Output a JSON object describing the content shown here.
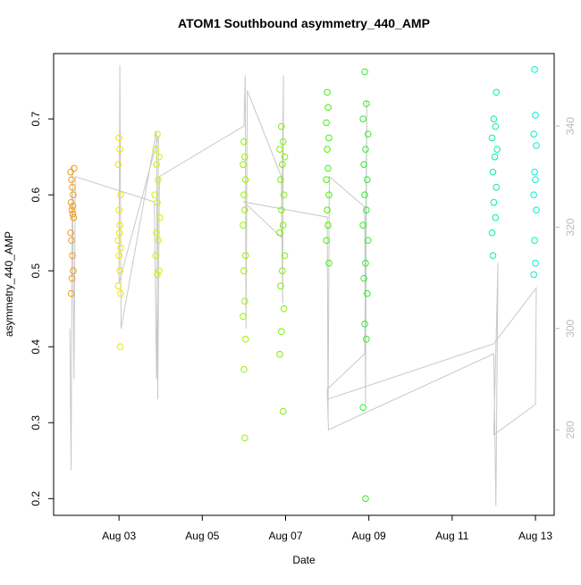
{
  "chart_data": {
    "type": "scatter",
    "title": "ATOM1 Southbound asymmetry_440_AMP",
    "xlabel": "Date",
    "ylabel": "asymmetry_440_AMP",
    "xlim": [
      1.43,
      13.45
    ],
    "ylim": [
      0.178,
      0.786
    ],
    "y2lim": [
      263.1,
      354.3
    ],
    "xticks": [
      {
        "value": 3,
        "label": "Aug 03"
      },
      {
        "value": 5,
        "label": "Aug 05"
      },
      {
        "value": 7,
        "label": "Aug 07"
      },
      {
        "value": 9,
        "label": "Aug 09"
      },
      {
        "value": 11,
        "label": "Aug 11"
      },
      {
        "value": 13,
        "label": "Aug 13"
      }
    ],
    "yticks": [
      0.2,
      0.3,
      0.4,
      0.5,
      0.6,
      0.7
    ],
    "y2ticks": [
      280,
      300,
      320,
      340
    ],
    "series": [
      {
        "color": "#f39c12",
        "x": [
          1.84,
          1.86,
          1.88,
          1.9,
          1.85,
          1.87,
          1.89,
          1.91,
          1.84,
          1.86,
          1.88,
          1.9,
          1.87,
          1.85,
          1.92,
          1.89
        ],
        "values": [
          0.63,
          0.62,
          0.61,
          0.6,
          0.59,
          0.58,
          0.575,
          0.57,
          0.55,
          0.54,
          0.52,
          0.5,
          0.49,
          0.47,
          0.635,
          0.585
        ]
      },
      {
        "color": "#e8e800",
        "x": [
          3.0,
          3.02,
          2.98,
          3.04,
          3.0,
          3.02,
          2.98,
          3.04,
          3.0,
          3.02,
          2.98,
          3.04,
          3.03,
          3.01
        ],
        "values": [
          0.675,
          0.66,
          0.64,
          0.6,
          0.58,
          0.56,
          0.54,
          0.53,
          0.52,
          0.5,
          0.48,
          0.47,
          0.4,
          0.55
        ]
      },
      {
        "color": "#d4f000",
        "x": [
          3.92,
          3.88,
          3.96,
          3.9,
          3.94,
          3.86,
          3.92,
          3.98,
          3.9,
          3.94,
          3.88,
          3.96,
          3.92
        ],
        "values": [
          0.68,
          0.66,
          0.65,
          0.64,
          0.62,
          0.6,
          0.59,
          0.57,
          0.55,
          0.54,
          0.52,
          0.5,
          0.495
        ]
      },
      {
        "color": "#99f000",
        "x": [
          6.0,
          6.02,
          5.98,
          6.04,
          6.0,
          6.02,
          5.98,
          6.04,
          6.0,
          6.02,
          5.98,
          6.04,
          6.0,
          6.02
        ],
        "values": [
          0.67,
          0.65,
          0.64,
          0.62,
          0.6,
          0.58,
          0.56,
          0.52,
          0.5,
          0.46,
          0.44,
          0.41,
          0.37,
          0.28
        ]
      },
      {
        "color": "#7cf000",
        "x": [
          6.9,
          6.94,
          6.86,
          6.98,
          6.92,
          6.88,
          6.96,
          6.9,
          6.94,
          6.86,
          6.98,
          6.92,
          6.88,
          6.96,
          6.9,
          6.86,
          6.94
        ],
        "values": [
          0.69,
          0.67,
          0.66,
          0.65,
          0.64,
          0.62,
          0.6,
          0.58,
          0.56,
          0.55,
          0.52,
          0.5,
          0.48,
          0.45,
          0.42,
          0.39,
          0.315
        ]
      },
      {
        "color": "#44f000",
        "x": [
          8.0,
          8.02,
          7.98,
          8.04,
          8.0,
          8.02,
          7.98,
          8.04,
          8.0,
          8.02,
          7.98,
          8.04
        ],
        "values": [
          0.735,
          0.715,
          0.695,
          0.675,
          0.66,
          0.635,
          0.62,
          0.6,
          0.58,
          0.56,
          0.54,
          0.51
        ]
      },
      {
        "color": "#28f028",
        "x": [
          8.9,
          8.94,
          8.86,
          8.98,
          8.92,
          8.88,
          8.96,
          8.9,
          8.94,
          8.86,
          8.98,
          8.92,
          8.88,
          8.96,
          8.9,
          8.94,
          8.86,
          8.92
        ],
        "values": [
          0.762,
          0.72,
          0.7,
          0.68,
          0.66,
          0.64,
          0.62,
          0.6,
          0.58,
          0.56,
          0.54,
          0.51,
          0.49,
          0.47,
          0.43,
          0.41,
          0.32,
          0.2
        ]
      },
      {
        "color": "#00f0a8",
        "x": [
          12.06,
          12.0,
          12.04,
          11.96,
          12.08,
          12.02,
          11.98,
          12.06,
          12.0,
          12.04,
          11.96,
          11.98
        ],
        "values": [
          0.735,
          0.7,
          0.69,
          0.675,
          0.66,
          0.65,
          0.63,
          0.61,
          0.59,
          0.57,
          0.55,
          0.52
        ]
      },
      {
        "color": "#00f0c8",
        "x": [
          12.98,
          13.0,
          12.96,
          13.02,
          12.98,
          13.0,
          12.96,
          13.02,
          12.98,
          13.0,
          12.96
        ],
        "values": [
          0.765,
          0.705,
          0.68,
          0.665,
          0.63,
          0.62,
          0.6,
          0.58,
          0.54,
          0.51,
          0.495
        ]
      },
      {
        "type": "line",
        "axis": "y2",
        "color": "#c8c8c8",
        "x": [
          1.82,
          1.85,
          1.88,
          1.92,
          1.95,
          3.85,
          3.9,
          3.95,
          3.0,
          3.02,
          3.05,
          3.9,
          3.93,
          3.97,
          6.0,
          6.03,
          6.05,
          6.08,
          6.9,
          6.93,
          6.95,
          6.9,
          6.0,
          8.0,
          8.02,
          8.05,
          8.9,
          8.92,
          8.95,
          8.9,
          8.0,
          8.03,
          12.0,
          12.05,
          12.1,
          12.0,
          13.0,
          13.02,
          12.0,
          8.0
        ],
        "values": [
          300,
          272,
          332,
          290,
          330,
          325,
          290,
          338,
          309,
          352,
          300,
          339,
          286,
          330,
          340,
          350,
          300,
          347,
          330,
          305,
          350,
          318,
          325,
          322,
          282,
          330,
          324,
          285,
          345,
          295,
          288,
          280,
          295,
          265,
          313,
          279,
          285,
          308,
          297,
          286
        ]
      }
    ]
  }
}
